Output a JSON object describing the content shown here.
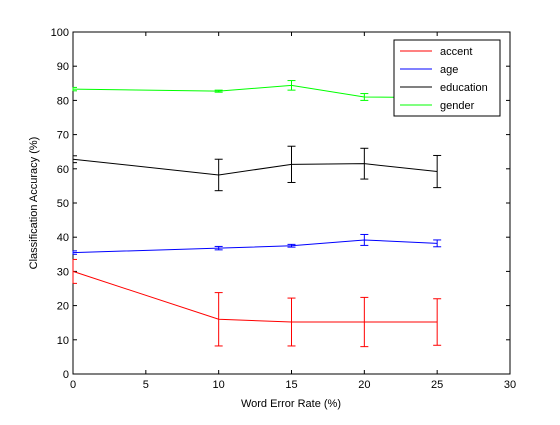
{
  "chart_data": {
    "type": "line",
    "title": "",
    "xlabel": "Word Error Rate (%)",
    "ylabel": "Classification Accuracy (%)",
    "xlim": [
      0,
      30
    ],
    "ylim": [
      0,
      100
    ],
    "xticks": [
      0,
      5,
      10,
      15,
      20,
      25,
      30
    ],
    "yticks": [
      0,
      10,
      20,
      30,
      40,
      50,
      60,
      70,
      80,
      90,
      100
    ],
    "grid": false,
    "legend_position": "top-right",
    "series": [
      {
        "name": "accent",
        "color": "#ff0000",
        "x": [
          0,
          10,
          15,
          20,
          25
        ],
        "y": [
          30,
          16,
          15.2,
          15.2,
          15.2
        ],
        "err": [
          3.5,
          7.8,
          7.0,
          7.2,
          6.8
        ]
      },
      {
        "name": "age",
        "color": "#0000ff",
        "x": [
          0,
          10,
          15,
          20,
          25
        ],
        "y": [
          35.5,
          36.8,
          37.5,
          39.2,
          38.2
        ],
        "err": [
          0.5,
          0.5,
          0.4,
          1.6,
          1.0
        ]
      },
      {
        "name": "education",
        "color": "#000000",
        "x": [
          0,
          10,
          15,
          20,
          25
        ],
        "y": [
          62.8,
          58.2,
          61.3,
          61.5,
          59.2
        ],
        "err": [
          1.0,
          4.6,
          5.3,
          4.5,
          4.7
        ]
      },
      {
        "name": "gender",
        "color": "#00ff00",
        "x": [
          0,
          10,
          15,
          20,
          25
        ],
        "y": [
          83.3,
          82.7,
          84.4,
          81.0,
          80.8
        ],
        "err": [
          0.5,
          0.3,
          1.4,
          1.0,
          0.3
        ]
      }
    ]
  }
}
